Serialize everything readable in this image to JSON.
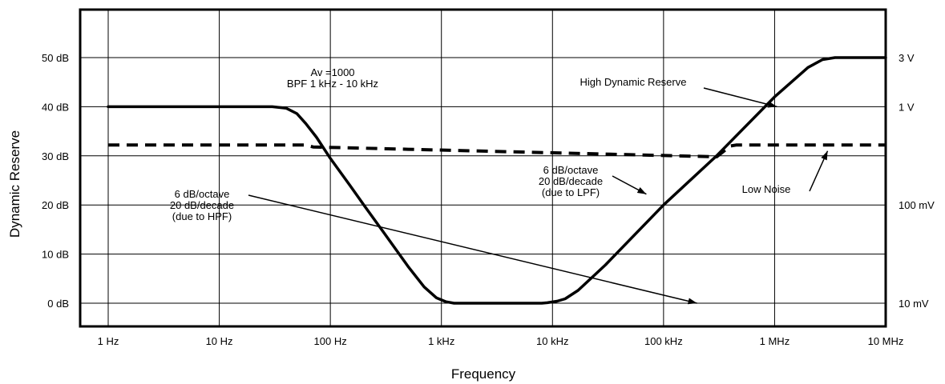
{
  "chart_data": {
    "type": "line",
    "title": "",
    "xlabel": "Frequency",
    "ylabel": "Dynamic Reserve",
    "x_scale": "log",
    "xlim": [
      0.5,
      10000000
    ],
    "ylim": [
      -5,
      55
    ],
    "grid": true,
    "x_ticks": [
      {
        "value": 1,
        "label": "1 Hz"
      },
      {
        "value": 10,
        "label": "10 Hz"
      },
      {
        "value": 100,
        "label": "100 Hz"
      },
      {
        "value": 1000,
        "label": "1 kHz"
      },
      {
        "value": 10000,
        "label": "10 kHz"
      },
      {
        "value": 100000,
        "label": "100 kHz"
      },
      {
        "value": 1000000,
        "label": "1 MHz"
      },
      {
        "value": 10000000,
        "label": "10 MHz"
      }
    ],
    "y_ticks": [
      {
        "value": 0,
        "label": "0 dB"
      },
      {
        "value": 10,
        "label": "10 dB"
      },
      {
        "value": 20,
        "label": "20 dB"
      },
      {
        "value": 30,
        "label": "30 dB"
      },
      {
        "value": 40,
        "label": "40 dB"
      },
      {
        "value": 50,
        "label": "50 dB"
      }
    ],
    "right_ticks": [
      {
        "value": 0,
        "label": "10 mV"
      },
      {
        "value": 20,
        "label": "100 mV"
      },
      {
        "value": 40,
        "label": "1 V"
      },
      {
        "value": 50,
        "label": "3 V"
      }
    ],
    "series": [
      {
        "name": "High Dynamic Reserve",
        "style": "solid",
        "color": "#000000",
        "points": [
          [
            1,
            40
          ],
          [
            30,
            40
          ],
          [
            40,
            39.7
          ],
          [
            50,
            38.6
          ],
          [
            60,
            36.6
          ],
          [
            75,
            33.8
          ],
          [
            100,
            29.5
          ],
          [
            150,
            24
          ],
          [
            200,
            20
          ],
          [
            300,
            14.5
          ],
          [
            500,
            7.5
          ],
          [
            700,
            3.3
          ],
          [
            900,
            1.1
          ],
          [
            1100,
            0.3
          ],
          [
            1300,
            0
          ],
          [
            8000,
            0
          ],
          [
            9000,
            0.1
          ],
          [
            11000,
            0.4
          ],
          [
            13000,
            0.9
          ],
          [
            17000,
            2.6
          ],
          [
            30000,
            7.8
          ],
          [
            100000,
            20
          ],
          [
            300000,
            30
          ],
          [
            1000000,
            42
          ],
          [
            2000000,
            48
          ],
          [
            2700000,
            49.6
          ],
          [
            3500000,
            50
          ],
          [
            10000000,
            50
          ]
        ]
      },
      {
        "name": "Low Noise",
        "style": "dashed",
        "color": "#000000",
        "points": [
          [
            1,
            32.2
          ],
          [
            60,
            32.2
          ],
          [
            70,
            31.8
          ],
          [
            300000,
            29.8
          ],
          [
            400000,
            32
          ],
          [
            450000,
            32.2
          ],
          [
            10000000,
            32.2
          ]
        ]
      }
    ],
    "annotations": [
      {
        "lines": [
          "Av =1000",
          "BPF 1 kHz - 10 kHz"
        ]
      },
      {
        "lines": [
          "High Dynamic Reserve"
        ],
        "arrow_to": [
          1050000,
          40
        ]
      },
      {
        "lines": [
          "6 dB/octave",
          "20 dB/decade",
          "(due to LPF)"
        ],
        "arrow_to": [
          70000,
          22.2
        ]
      },
      {
        "lines": [
          "6 dB/octave",
          "20 dB/decade",
          "(due to HPF)"
        ],
        "arrow_to": [
          200000,
          0
        ]
      },
      {
        "lines": [
          "Low Noise"
        ],
        "arrow_to": [
          3000000,
          31
        ]
      }
    ]
  }
}
